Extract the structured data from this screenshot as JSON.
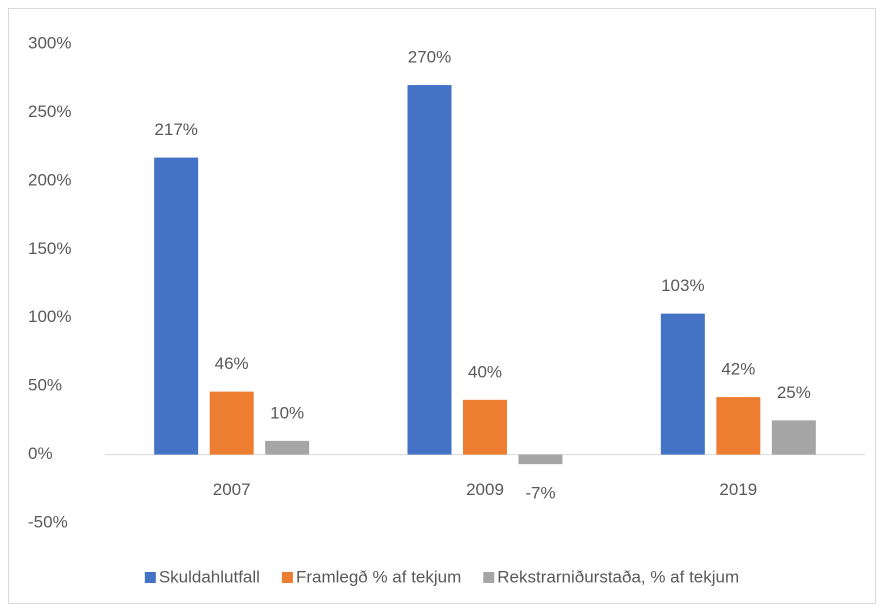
{
  "chart_data": {
    "type": "bar",
    "categories": [
      "2007",
      "2009",
      "2019"
    ],
    "series": [
      {
        "name": "Skuldahlutfall",
        "color": "#4472c4",
        "values": [
          217,
          270,
          103
        ],
        "value_labels": [
          "217%",
          "270%",
          "103%"
        ]
      },
      {
        "name": "Framlegð % af tekjum",
        "color": "#ed7d31",
        "values": [
          46,
          40,
          42
        ],
        "value_labels": [
          "46%",
          "40%",
          "42%"
        ]
      },
      {
        "name": "Rekstrarniðurstaða, % af tekjum",
        "color": "#a5a5a5",
        "values": [
          10,
          -7,
          25
        ],
        "value_labels": [
          "10%",
          "-7%",
          "25%"
        ]
      }
    ],
    "ylim": [
      -50,
      300
    ],
    "yticks": [
      {
        "value": -50,
        "label": "-50%"
      },
      {
        "value": 0,
        "label": "0%"
      },
      {
        "value": 50,
        "label": "50%"
      },
      {
        "value": 100,
        "label": "100%"
      },
      {
        "value": 150,
        "label": "150%"
      },
      {
        "value": 200,
        "label": "200%"
      },
      {
        "value": 250,
        "label": "250%"
      },
      {
        "value": 300,
        "label": "300%"
      }
    ],
    "grid": false,
    "legend": "bottom"
  }
}
